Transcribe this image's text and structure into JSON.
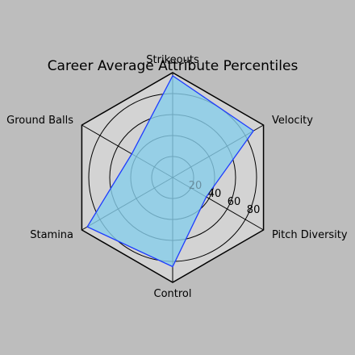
{
  "chart_data": {
    "type": "radar",
    "title": "Career Average Attribute Percentiles",
    "categories": [
      "Strikeouts",
      "Velocity",
      "Pitch Diversity",
      "Control",
      "Stamina",
      "Ground Balls"
    ],
    "series": [
      {
        "values": [
          97,
          89,
          37,
          85,
          94,
          45
        ],
        "color": "#1e3cff",
        "fill": "#87ceeb"
      }
    ],
    "r_ticks": [
      20,
      40,
      60,
      80
    ],
    "r_max": 100,
    "grid": true,
    "background": "#d3d3d3",
    "figure_background": "#bdbdbd"
  }
}
